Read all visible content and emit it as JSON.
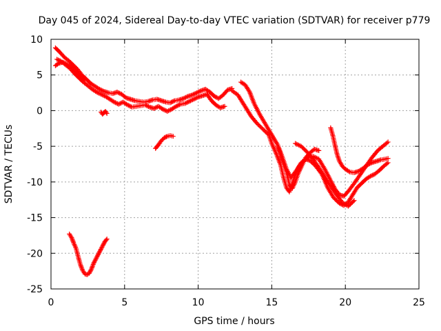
{
  "chart_data": {
    "type": "scatter",
    "title": "Day 045 of 2024, Sidereal Day-to-day VTEC variation (SDTVAR) for receiver p779",
    "xlabel": "GPS time / hours",
    "ylabel": "SDTVAR / TECUs",
    "xlim": [
      0,
      25
    ],
    "ylim": [
      -25,
      10
    ],
    "xticks": [
      0,
      5,
      10,
      15,
      20,
      25
    ],
    "yticks": [
      -25,
      -20,
      -15,
      -10,
      -5,
      0,
      5,
      10
    ],
    "grid": true,
    "marker": "plus",
    "color": "#ff0000",
    "series": [
      {
        "name": "main-trace-a",
        "x": [
          0.3,
          0.6,
          0.9,
          1.2,
          1.5,
          1.8,
          2.1,
          2.4,
          2.7,
          3.0,
          3.3,
          3.6,
          3.9,
          4.2,
          4.5,
          4.8,
          5.1,
          5.4,
          5.7,
          6.0,
          6.3,
          6.6,
          6.9,
          7.2,
          7.5,
          7.8,
          8.1,
          8.4,
          8.7,
          9.0,
          9.3,
          9.6,
          9.9,
          10.2,
          10.5,
          10.8,
          11.1,
          11.4,
          11.7,
          12.0,
          12.3
        ],
        "y": [
          8.8,
          8.2,
          7.5,
          7.0,
          6.4,
          5.8,
          5.0,
          4.4,
          3.8,
          3.4,
          3.0,
          2.7,
          2.5,
          2.4,
          2.6,
          2.3,
          1.8,
          1.6,
          1.4,
          1.3,
          1.2,
          1.3,
          1.5,
          1.6,
          1.4,
          1.2,
          1.1,
          1.4,
          1.5,
          1.7,
          2.0,
          2.2,
          2.5,
          2.8,
          3.0,
          2.6,
          2.0,
          1.7,
          2.2,
          2.9,
          3.1
        ]
      },
      {
        "name": "main-trace-b",
        "x": [
          0.4,
          0.7,
          1.0,
          1.3,
          1.6,
          1.9,
          2.2,
          2.5,
          2.8,
          3.1,
          3.4,
          3.7,
          4.0,
          4.3,
          4.6,
          4.9,
          5.2,
          5.5,
          5.8,
          6.1,
          6.4,
          6.7,
          7.0,
          7.3,
          7.6,
          7.9,
          8.2,
          8.5,
          8.8,
          9.1,
          9.4,
          9.7,
          10.0,
          10.3,
          10.6,
          10.9,
          11.2,
          11.5,
          11.8
        ],
        "y": [
          7.2,
          6.9,
          6.4,
          5.9,
          5.2,
          4.6,
          4.0,
          3.5,
          3.0,
          2.6,
          2.3,
          2.0,
          1.6,
          1.2,
          0.9,
          1.2,
          0.8,
          0.5,
          0.6,
          0.7,
          0.8,
          0.5,
          0.3,
          0.6,
          0.2,
          -0.1,
          0.2,
          0.6,
          0.9,
          1.0,
          1.3,
          1.6,
          1.9,
          2.1,
          2.3,
          1.4,
          0.8,
          0.4,
          0.6
        ]
      },
      {
        "name": "main-trace-c",
        "x": [
          0.3,
          0.5,
          0.8,
          1.1,
          1.4,
          1.7,
          2.0,
          2.3
        ],
        "y": [
          6.3,
          6.6,
          6.8,
          6.5,
          6.1,
          5.5,
          4.9,
          4.3
        ]
      },
      {
        "name": "segment-after-13",
        "x": [
          12.3,
          12.7,
          13.0,
          13.3,
          13.6,
          14.0,
          14.4,
          14.8,
          15.0,
          15.3,
          15.6,
          15.8,
          16.0,
          16.2,
          16.4,
          16.6,
          16.8,
          17.0,
          17.3,
          17.6,
          18.0,
          18.4,
          18.8,
          19.2,
          19.6,
          19.9,
          20.2,
          20.5,
          20.8,
          21.1,
          21.4,
          21.7,
          22.0,
          22.3,
          22.6,
          22.9
        ],
        "y": [
          2.8,
          2.2,
          1.2,
          0.2,
          -0.8,
          -1.8,
          -2.6,
          -3.4,
          -4.6,
          -6.0,
          -7.6,
          -9.4,
          -10.8,
          -11.4,
          -10.2,
          -9.0,
          -8.0,
          -7.3,
          -6.8,
          -7.0,
          -7.8,
          -8.9,
          -10.8,
          -12.2,
          -13.0,
          -13.3,
          -12.8,
          -11.8,
          -10.8,
          -10.2,
          -9.6,
          -9.2,
          -8.9,
          -8.4,
          -7.8,
          -7.3
        ]
      },
      {
        "name": "segment-upper-right",
        "x": [
          12.9,
          13.2,
          13.5,
          13.8,
          14.2,
          14.6,
          15.0,
          15.4,
          15.7,
          16.0,
          16.3,
          16.6,
          17.0,
          17.4,
          17.8,
          18.2,
          18.6,
          19.0,
          19.3,
          19.6,
          19.9,
          20.2,
          20.6,
          21.0,
          21.4,
          21.8,
          22.2,
          22.6,
          22.9
        ],
        "y": [
          4.0,
          3.6,
          2.6,
          1.0,
          -0.6,
          -2.0,
          -3.4,
          -4.8,
          -6.4,
          -8.2,
          -9.4,
          -8.6,
          -7.4,
          -6.6,
          -6.4,
          -6.8,
          -8.2,
          -9.8,
          -11.0,
          -11.8,
          -12.0,
          -11.3,
          -10.2,
          -9.0,
          -7.8,
          -6.6,
          -5.6,
          -4.9,
          -4.4
        ]
      },
      {
        "name": "segment-lower-right",
        "x": [
          15.4,
          15.7,
          16.0,
          16.2,
          16.4,
          16.6,
          16.8,
          17.0,
          17.3,
          17.6,
          17.9,
          18.2
        ],
        "y": [
          -5.0,
          -6.8,
          -8.6,
          -10.4,
          -10.9,
          -10.0,
          -8.8,
          -7.9,
          -6.6,
          -5.9,
          -5.4,
          -5.6
        ]
      },
      {
        "name": "segment-19h-spike",
        "x": [
          19.0,
          19.15,
          19.3,
          19.45,
          19.6,
          19.8,
          20.0,
          20.3,
          20.6,
          20.9,
          21.2,
          21.5,
          21.8,
          22.1,
          22.4,
          22.7,
          22.9
        ],
        "y": [
          -2.4,
          -3.5,
          -4.9,
          -6.2,
          -7.1,
          -7.8,
          -8.2,
          -8.6,
          -8.7,
          -8.5,
          -8.1,
          -7.6,
          -7.3,
          -7.1,
          -6.9,
          -6.8,
          -6.7
        ]
      },
      {
        "name": "segment-17h-parallel",
        "x": [
          16.6,
          17.0,
          17.4,
          17.8,
          18.2,
          18.6,
          19.0,
          19.4,
          19.8,
          20.2,
          20.6
        ],
        "y": [
          -4.6,
          -5.0,
          -5.8,
          -6.8,
          -8.0,
          -9.3,
          -10.6,
          -11.8,
          -12.9,
          -13.4,
          -12.6
        ]
      },
      {
        "name": "segment-03h-dips",
        "x": [
          3.4,
          3.5,
          3.6,
          3.7,
          3.8
        ],
        "y": [
          -0.2,
          -0.5,
          -0.3,
          -0.1,
          -0.4
        ]
      },
      {
        "name": "segment-8h",
        "x": [
          7.1,
          7.3,
          7.5,
          7.7,
          7.9,
          8.1,
          8.3
        ],
        "y": [
          -5.3,
          -4.8,
          -4.2,
          -3.8,
          -3.6,
          -3.5,
          -3.6
        ]
      },
      {
        "name": "segment-early-dip",
        "x": [
          1.25,
          1.4,
          1.55,
          1.7,
          1.85,
          2.0,
          2.15,
          2.3,
          2.45,
          2.6,
          2.75,
          2.9,
          3.05,
          3.2,
          3.35,
          3.5,
          3.65,
          3.8
        ],
        "y": [
          -17.3,
          -17.8,
          -18.6,
          -19.3,
          -20.5,
          -21.6,
          -22.4,
          -22.9,
          -23.0,
          -22.8,
          -22.2,
          -21.4,
          -20.8,
          -20.2,
          -19.6,
          -19.0,
          -18.4,
          -18.0
        ]
      }
    ]
  }
}
